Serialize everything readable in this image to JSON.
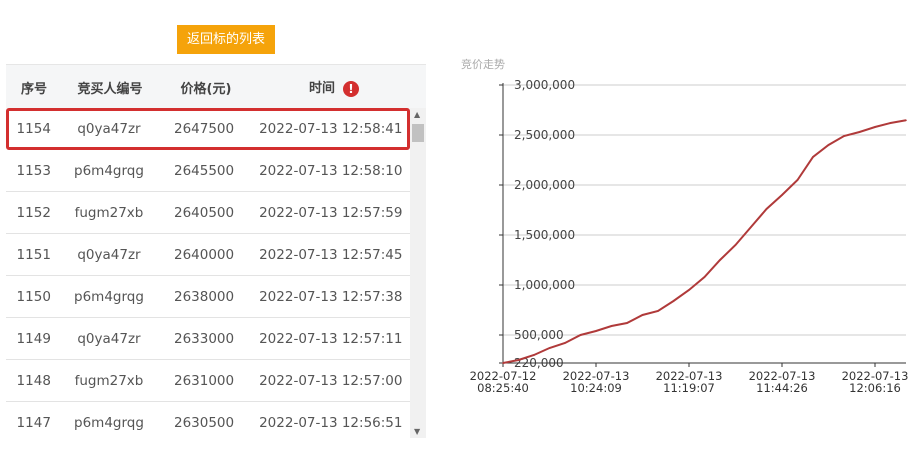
{
  "back_button": "返回标的列表",
  "table": {
    "headers": [
      "序号",
      "竞买人编号",
      "价格(元)",
      "时间"
    ],
    "warning_icon": "exclamation-circle-icon",
    "rows": [
      [
        "1154",
        "q0ya47zr",
        "2647500",
        "2022-07-13 12:58:41"
      ],
      [
        "1153",
        "p6m4grqg",
        "2645500",
        "2022-07-13 12:58:10"
      ],
      [
        "1152",
        "fugm27xb",
        "2640500",
        "2022-07-13 12:57:59"
      ],
      [
        "1151",
        "q0ya47zr",
        "2640000",
        "2022-07-13 12:57:45"
      ],
      [
        "1150",
        "p6m4grqg",
        "2638000",
        "2022-07-13 12:57:38"
      ],
      [
        "1149",
        "q0ya47zr",
        "2633000",
        "2022-07-13 12:57:11"
      ],
      [
        "1148",
        "fugm27xb",
        "2631000",
        "2022-07-13 12:57:00"
      ],
      [
        "1147",
        "p6m4grqg",
        "2630500",
        "2022-07-13 12:56:51"
      ]
    ],
    "selected_row": 0
  },
  "chart_data": {
    "type": "line",
    "title": "竞价走势",
    "color": "#b03a3a",
    "ylim": [
      220000,
      3000000
    ],
    "yticks": [
      220000,
      500000,
      1000000,
      1500000,
      2000000,
      2500000,
      3000000
    ],
    "ytick_labels": [
      "220,000",
      "500,000",
      "1,000,000",
      "1,500,000",
      "2,000,000",
      "2,500,000",
      "3,000,000"
    ],
    "xtick_labels": [
      [
        "2022-07-12",
        "08:25:40"
      ],
      [
        "2022-07-13",
        "10:24:09"
      ],
      [
        "2022-07-13",
        "11:19:07"
      ],
      [
        "2022-07-13",
        "11:44:26"
      ],
      [
        "2022-07-13",
        "12:06:16"
      ]
    ],
    "xtick_index": [
      0,
      6,
      12,
      18,
      24
    ],
    "values": [
      220000,
      250000,
      300000,
      370000,
      420000,
      500000,
      540000,
      590000,
      620000,
      700000,
      740000,
      840000,
      950000,
      1080000,
      1250000,
      1400000,
      1580000,
      1760000,
      1900000,
      2050000,
      2280000,
      2400000,
      2490000,
      2530000,
      2580000,
      2620000,
      2647500
    ],
    "grid": true
  }
}
